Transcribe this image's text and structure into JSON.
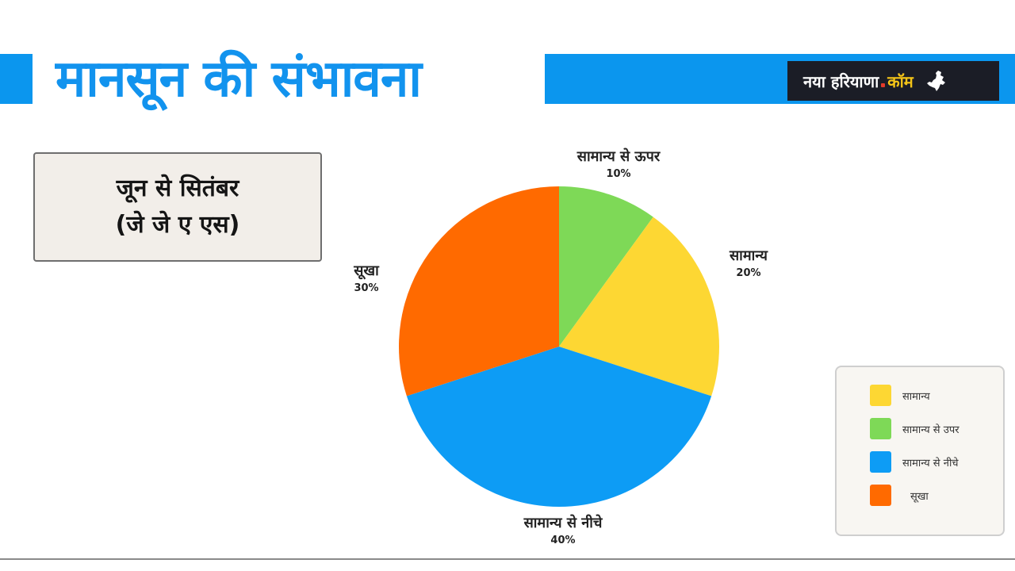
{
  "header": {
    "title": "मानसून की संभावना",
    "brand": {
      "name": "नया हरियाणा",
      "tld": "कॉम",
      "icon": "haryana-map-icon"
    }
  },
  "period": {
    "line1": "जून से सितंबर",
    "line2": "(जे जे ए एस)"
  },
  "colors": {
    "accent_blue": "#0b96ee",
    "title_blue": "#1293ee",
    "green": "#7ed957",
    "yellow": "#fdd733",
    "blue": "#0d9cf5",
    "orange": "#ff6a00"
  },
  "chart_data": {
    "type": "pie",
    "title": "मानसून की संभावना",
    "subtitle": "जून से सितंबर (जे जे ए एस)",
    "start_angle": "12 o'clock, clockwise",
    "categories": [
      "सामान्य से ऊपर",
      "सामान्य",
      "सामान्य से नीचे",
      "सूखा"
    ],
    "values": [
      10,
      20,
      40,
      30
    ],
    "labels": [
      "10%",
      "20%",
      "40%",
      "30%"
    ],
    "colors": [
      "#7ed957",
      "#fdd733",
      "#0d9cf5",
      "#ff6a00"
    ],
    "legend_position": "bottom-right",
    "legend": [
      {
        "label": "सामान्य",
        "color": "#fdd733"
      },
      {
        "label": "सामान्य से उपर",
        "color": "#7ed957"
      },
      {
        "label": "सामान्य से नीचे",
        "color": "#0d9cf5"
      },
      {
        "label": "सूखा",
        "color": "#ff6a00"
      }
    ]
  }
}
